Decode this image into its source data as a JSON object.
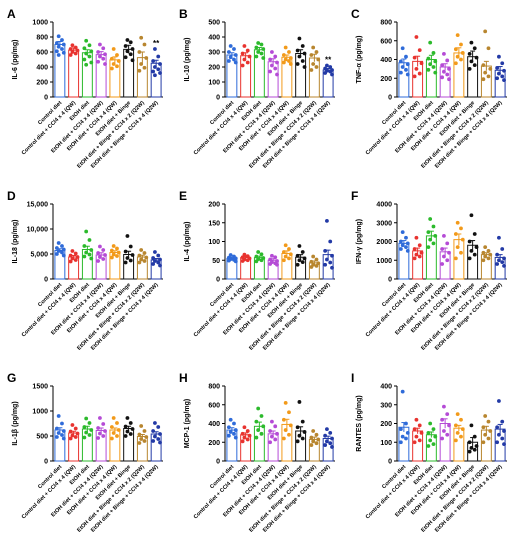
{
  "colors": [
    "#2f6bd9",
    "#e8332f",
    "#2cba2c",
    "#b54bd6",
    "#f29a1a",
    "#111111",
    "#b8862f",
    "#233aa6"
  ],
  "chart_data": [
    {
      "type": "bar",
      "panel": "A",
      "ylabel": "IL-6 (pg/mg)",
      "ylim": [
        0,
        1000
      ],
      "yticks": [
        "0",
        "200",
        "400",
        "600",
        "800",
        "1000"
      ],
      "categories": [
        "Control diet",
        "Control diet + CCl4 x 4 (QW)",
        "EtOH diet",
        "EtOH diet + CCl4 x 4 (Q2W)",
        "EtOH diet + CCl4 x 4 (QW)",
        "EtOH diet + Binge",
        "EtOH diet + Binge + CCl4 x 2 (Q2W)",
        "EtOH diet + Binge + CCl4 x 4 (Q2W)"
      ],
      "values": [
        700,
        625,
        590,
        565,
        495,
        635,
        525,
        450
      ],
      "errors": [
        40,
        30,
        40,
        40,
        40,
        55,
        75,
        40
      ],
      "points": [
        [
          810,
          760,
          720,
          700,
          670,
          640,
          610,
          590,
          560
        ],
        [
          690,
          660,
          640,
          620,
          600,
          580,
          560
        ],
        [
          750,
          690,
          650,
          610,
          580,
          540,
          500,
          460,
          430
        ],
        [
          700,
          650,
          600,
          570,
          540,
          510,
          470,
          440
        ],
        [
          640,
          560,
          510,
          480,
          440,
          410,
          380
        ],
        [
          760,
          730,
          680,
          640,
          610,
          570,
          530,
          490
        ],
        [
          790,
          700,
          600,
          520,
          440,
          390,
          350
        ],
        [
          640,
          540,
          480,
          440,
          400,
          370,
          340,
          320,
          290
        ]
      ],
      "annotations": [
        {
          "index": 7,
          "text": "**"
        }
      ]
    },
    {
      "type": "bar",
      "panel": "B",
      "ylabel": "IL-10 (pg/mg)",
      "ylim": [
        0,
        500
      ],
      "yticks": [
        "0",
        "100",
        "200",
        "300",
        "400",
        "500"
      ],
      "categories": [
        "Control diet",
        "Control diet + CCl4 x 4 (QW)",
        "EtOH diet",
        "EtOH diet + CCl4 x 4 (Q2W)",
        "EtOH diet + CCl4 x 4 (QW)",
        "EtOH diet + Binge",
        "EtOH diet + Binge + CCl4 x 2 (Q2W)",
        "EtOH diet + Binge + CCl4 x 4 (Q2W)"
      ],
      "values": [
        280,
        275,
        315,
        235,
        265,
        290,
        260,
        180
      ],
      "errors": [
        15,
        20,
        15,
        20,
        15,
        25,
        25,
        10
      ],
      "points": [
        [
          340,
          320,
          300,
          280,
          265,
          250,
          240,
          230
        ],
        [
          340,
          310,
          290,
          270,
          250,
          230,
          210
        ],
        [
          360,
          350,
          330,
          320,
          300,
          290,
          270,
          260
        ],
        [
          300,
          270,
          250,
          230,
          210,
          190,
          170,
          150
        ],
        [
          330,
          300,
          280,
          260,
          250,
          240,
          230,
          220
        ],
        [
          390,
          340,
          310,
          290,
          270,
          240,
          220,
          200
        ],
        [
          330,
          300,
          280,
          250,
          220,
          200,
          180
        ],
        [
          210,
          200,
          190,
          180,
          175,
          170,
          160,
          150
        ]
      ],
      "annotations": [
        {
          "index": 7,
          "text": "**"
        }
      ]
    },
    {
      "type": "bar",
      "panel": "C",
      "ylabel": "TNF-α (pg/mg)",
      "ylim": [
        0,
        800
      ],
      "yticks": [
        "0",
        "200",
        "400",
        "600",
        "800"
      ],
      "categories": [
        "Control diet",
        "Control diet + CCl4 x 4 (QW)",
        "EtOH diet",
        "EtOH diet + CCl4 x 4 (Q2W)",
        "EtOH diet + CCl4 x 4 (QW)",
        "EtOH diet + Binge",
        "EtOH diet + Binge + CCl4 x 2 (Q2W)",
        "EtOH diet + Binge + CCl4 x 4 (Q2W)"
      ],
      "values": [
        365,
        380,
        400,
        320,
        470,
        430,
        330,
        285
      ],
      "errors": [
        40,
        55,
        45,
        35,
        55,
        60,
        50,
        40
      ],
      "points": [
        [
          520,
          430,
          380,
          350,
          320,
          290,
          260,
          240
        ],
        [
          640,
          500,
          420,
          360,
          300,
          250,
          220
        ],
        [
          580,
          470,
          410,
          380,
          350,
          320,
          290,
          260
        ],
        [
          460,
          390,
          340,
          300,
          270,
          240,
          210,
          190
        ],
        [
          660,
          560,
          510,
          470,
          430,
          400,
          360
        ],
        [
          580,
          520,
          460,
          420,
          380,
          340,
          300
        ],
        [
          700,
          520,
          340,
          300,
          260,
          220,
          190
        ],
        [
          430,
          360,
          310,
          280,
          250,
          220,
          200,
          180
        ]
      ],
      "annotations": []
    },
    {
      "type": "bar",
      "panel": "D",
      "ylabel": "IL-18 (pg/mg)",
      "ylim": [
        0,
        15000
      ],
      "yticks": [
        "0",
        "5,000",
        "10,000",
        "15,000"
      ],
      "categories": [
        "Control diet",
        "Control diet + CCl4 x 4 (QW)",
        "EtOH diet",
        "EtOH diet + CCl4 x 4 (Q2W)",
        "EtOH diet + CCl4 x 4 (QW)",
        "EtOH diet + Binge",
        "EtOH diet + Binge + CCl4 x 2 (Q2W)",
        "EtOH diet + Binge + CCl4 x 4 (Q2W)"
      ],
      "values": [
        5700,
        4400,
        5900,
        4800,
        5300,
        4900,
        4400,
        3800
      ],
      "errors": [
        350,
        300,
        650,
        450,
        350,
        650,
        350,
        300
      ],
      "points": [
        [
          7200,
          6600,
          6200,
          5900,
          5600,
          5300,
          5000,
          4700
        ],
        [
          5600,
          5100,
          4700,
          4400,
          4100,
          3800,
          3500
        ],
        [
          9500,
          7800,
          6600,
          5800,
          5300,
          4900,
          4500,
          4100
        ],
        [
          6500,
          5800,
          5200,
          4800,
          4400,
          4000,
          3600
        ],
        [
          6600,
          6100,
          5700,
          5300,
          4900,
          4600,
          4300
        ],
        [
          8600,
          6500,
          5500,
          4800,
          4200,
          3700,
          3300
        ],
        [
          5800,
          5200,
          4700,
          4300,
          3900,
          3600,
          3300
        ],
        [
          5400,
          4700,
          4200,
          3900,
          3600,
          3300,
          3000,
          2700
        ]
      ],
      "annotations": []
    },
    {
      "type": "bar",
      "panel": "E",
      "ylabel": "IL-4 (pg/mg)",
      "ylim": [
        0,
        200
      ],
      "yticks": [
        "0",
        "50",
        "100",
        "150",
        "200"
      ],
      "categories": [
        "Control diet",
        "Control diet + CCl4 x 4 (QW)",
        "EtOH diet",
        "EtOH diet + CCl4 x 4 (Q2W)",
        "EtOH diet + CCl4 x 4 (QW)",
        "EtOH diet + Binge",
        "EtOH diet + Binge + CCl4 x 2 (Q2W)",
        "EtOH diet + Binge + CCl4 x 4 (Q2W)"
      ],
      "values": [
        55,
        57,
        57,
        50,
        68,
        58,
        43,
        65
      ],
      "errors": [
        3,
        3,
        4,
        4,
        7,
        7,
        5,
        12
      ],
      "points": [
        [
          64,
          60,
          57,
          55,
          53,
          51,
          49,
          47
        ],
        [
          65,
          61,
          58,
          55,
          52,
          50,
          48
        ],
        [
          72,
          66,
          60,
          56,
          53,
          50,
          47
        ],
        [
          62,
          58,
          52,
          48,
          45,
          42,
          40,
          38
        ],
        [
          90,
          80,
          72,
          66,
          60,
          55,
          50
        ],
        [
          88,
          72,
          62,
          55,
          50,
          45,
          38
        ],
        [
          60,
          52,
          46,
          42,
          38,
          35,
          32
        ],
        [
          155,
          100,
          75,
          62,
          52,
          44,
          38,
          30
        ]
      ],
      "annotations": []
    },
    {
      "type": "bar",
      "panel": "F",
      "ylabel": "IFN-γ (pg/mg)",
      "ylim": [
        0,
        4000
      ],
      "yticks": [
        "0",
        "1000",
        "2000",
        "3000",
        "4000"
      ],
      "categories": [
        "Control diet",
        "Control diet + CCl4 x 4 (QW)",
        "EtOH diet",
        "EtOH diet + CCl4 x 4 (Q2W)",
        "EtOH diet + CCl4 x 4 (QW)",
        "EtOH diet + Binge",
        "EtOH diet + Binge + CCl4 x 2 (Q2W)",
        "EtOH diet + Binge + CCl4 x 4 (Q2W)"
      ],
      "values": [
        1900,
        1500,
        2300,
        1450,
        2100,
        1800,
        1300,
        1150
      ],
      "errors": [
        150,
        150,
        250,
        200,
        300,
        250,
        100,
        150
      ],
      "points": [
        [
          2500,
          2200,
          2000,
          1900,
          1800,
          1700,
          1600,
          1500
        ],
        [
          2200,
          1800,
          1600,
          1400,
          1300,
          1200,
          1100
        ],
        [
          3200,
          2800,
          2500,
          2300,
          2100,
          1900,
          1700
        ],
        [
          2300,
          1900,
          1600,
          1400,
          1200,
          1000,
          800
        ],
        [
          3000,
          2700,
          2400,
          2100,
          1700,
          1400,
          1100
        ],
        [
          3400,
          2400,
          2000,
          1700,
          1500,
          1300,
          1100
        ],
        [
          1700,
          1500,
          1400,
          1300,
          1200,
          1100,
          1000
        ],
        [
          2200,
          1600,
          1300,
          1100,
          1000,
          900,
          800,
          700
        ]
      ],
      "annotations": []
    },
    {
      "type": "bar",
      "panel": "G",
      "ylabel": "IL-1β (pg/mg)",
      "ylim": [
        0,
        1500
      ],
      "yticks": [
        "0",
        "500",
        "1000",
        "1500"
      ],
      "categories": [
        "Control diet",
        "Control diet + CCl4 x 4 (QW)",
        "EtOH diet",
        "EtOH diet + CCl4 x 4 (Q2W)",
        "EtOH diet + CCl4 x 4 (QW)",
        "EtOH diet + Binge",
        "EtOH diet + Binge + CCl4 x 2 (Q2W)",
        "EtOH diet + Binge + CCl4 x 4 (Q2W)"
      ],
      "values": [
        620,
        560,
        640,
        610,
        620,
        650,
        490,
        540
      ],
      "errors": [
        45,
        35,
        55,
        50,
        40,
        45,
        40,
        45
      ],
      "points": [
        [
          900,
          750,
          650,
          600,
          560,
          520,
          480,
          450
        ],
        [
          720,
          650,
          590,
          550,
          510,
          480,
          450
        ],
        [
          850,
          760,
          680,
          620,
          570,
          520,
          470
        ],
        [
          860,
          740,
          660,
          600,
          550,
          500,
          460
        ],
        [
          860,
          760,
          680,
          620,
          560,
          500,
          450
        ],
        [
          860,
          760,
          690,
          640,
          590,
          540,
          500
        ],
        [
          700,
          600,
          530,
          480,
          440,
          400,
          360
        ],
        [
          760,
          680,
          600,
          540,
          490,
          440,
          400,
          370
        ]
      ],
      "annotations": []
    },
    {
      "type": "bar",
      "panel": "H",
      "ylabel": "MCP-1 (pg/mg)",
      "ylim": [
        0,
        800
      ],
      "yticks": [
        "0",
        "200",
        "400",
        "600",
        "800"
      ],
      "categories": [
        "Control diet",
        "Control diet + CCl4 x 4 (QW)",
        "EtOH diet",
        "EtOH diet + CCl4 x 4 (Q2W)",
        "EtOH diet + CCl4 x 4 (QW)",
        "EtOH diet + Binge",
        "EtOH diet + Binge + CCl4 x 2 (Q2W)",
        "EtOH diet + Binge + CCl4 x 4 (Q2W)"
      ],
      "values": [
        330,
        280,
        370,
        290,
        390,
        320,
        230,
        240
      ],
      "errors": [
        25,
        20,
        45,
        30,
        55,
        45,
        25,
        25
      ],
      "points": [
        [
          440,
          400,
          360,
          330,
          310,
          290,
          270,
          250
        ],
        [
          360,
          320,
          290,
          270,
          250,
          230,
          210
        ],
        [
          560,
          480,
          420,
          370,
          330,
          290,
          250
        ],
        [
          420,
          370,
          320,
          290,
          260,
          230,
          200
        ],
        [
          620,
          520,
          440,
          380,
          330,
          280,
          240
        ],
        [
          630,
          420,
          360,
          310,
          270,
          240,
          210
        ],
        [
          320,
          280,
          250,
          230,
          210,
          190,
          170
        ],
        [
          340,
          300,
          270,
          240,
          210,
          190,
          170,
          150
        ]
      ],
      "annotations": []
    },
    {
      "type": "bar",
      "panel": "I",
      "ylabel": "RANTES (pg/mg)",
      "ylim": [
        0,
        400
      ],
      "yticks": [
        "0",
        "100",
        "200",
        "300",
        "400"
      ],
      "categories": [
        "Control diet",
        "Control diet + CCl4 x 4 (QW)",
        "EtOH diet",
        "EtOH diet + CCl4 x 4 (Q2W)",
        "EtOH diet + CCl4 x 4 (QW)",
        "EtOH diet + Binge",
        "EtOH diet + Binge + CCl4 x 2 (Q2W)",
        "EtOH diet + Binge + CCl4 x 4 (Q2W)"
      ],
      "values": [
        180,
        160,
        140,
        200,
        175,
        100,
        165,
        170
      ],
      "errors": [
        25,
        15,
        15,
        25,
        15,
        25,
        20,
        25
      ],
      "points": [
        [
          370,
          200,
          170,
          150,
          130,
          120,
          100
        ],
        [
          220,
          190,
          170,
          150,
          130,
          110,
          100
        ],
        [
          200,
          170,
          150,
          130,
          110,
          90,
          80
        ],
        [
          290,
          250,
          220,
          190,
          160,
          140,
          120
        ],
        [
          250,
          220,
          190,
          170,
          150,
          130,
          110
        ],
        [
          190,
          130,
          100,
          80,
          70,
          60,
          50
        ],
        [
          240,
          210,
          180,
          160,
          140,
          120,
          100
        ],
        [
          320,
          210,
          180,
          160,
          140,
          120,
          100,
          90
        ]
      ],
      "annotations": []
    }
  ]
}
